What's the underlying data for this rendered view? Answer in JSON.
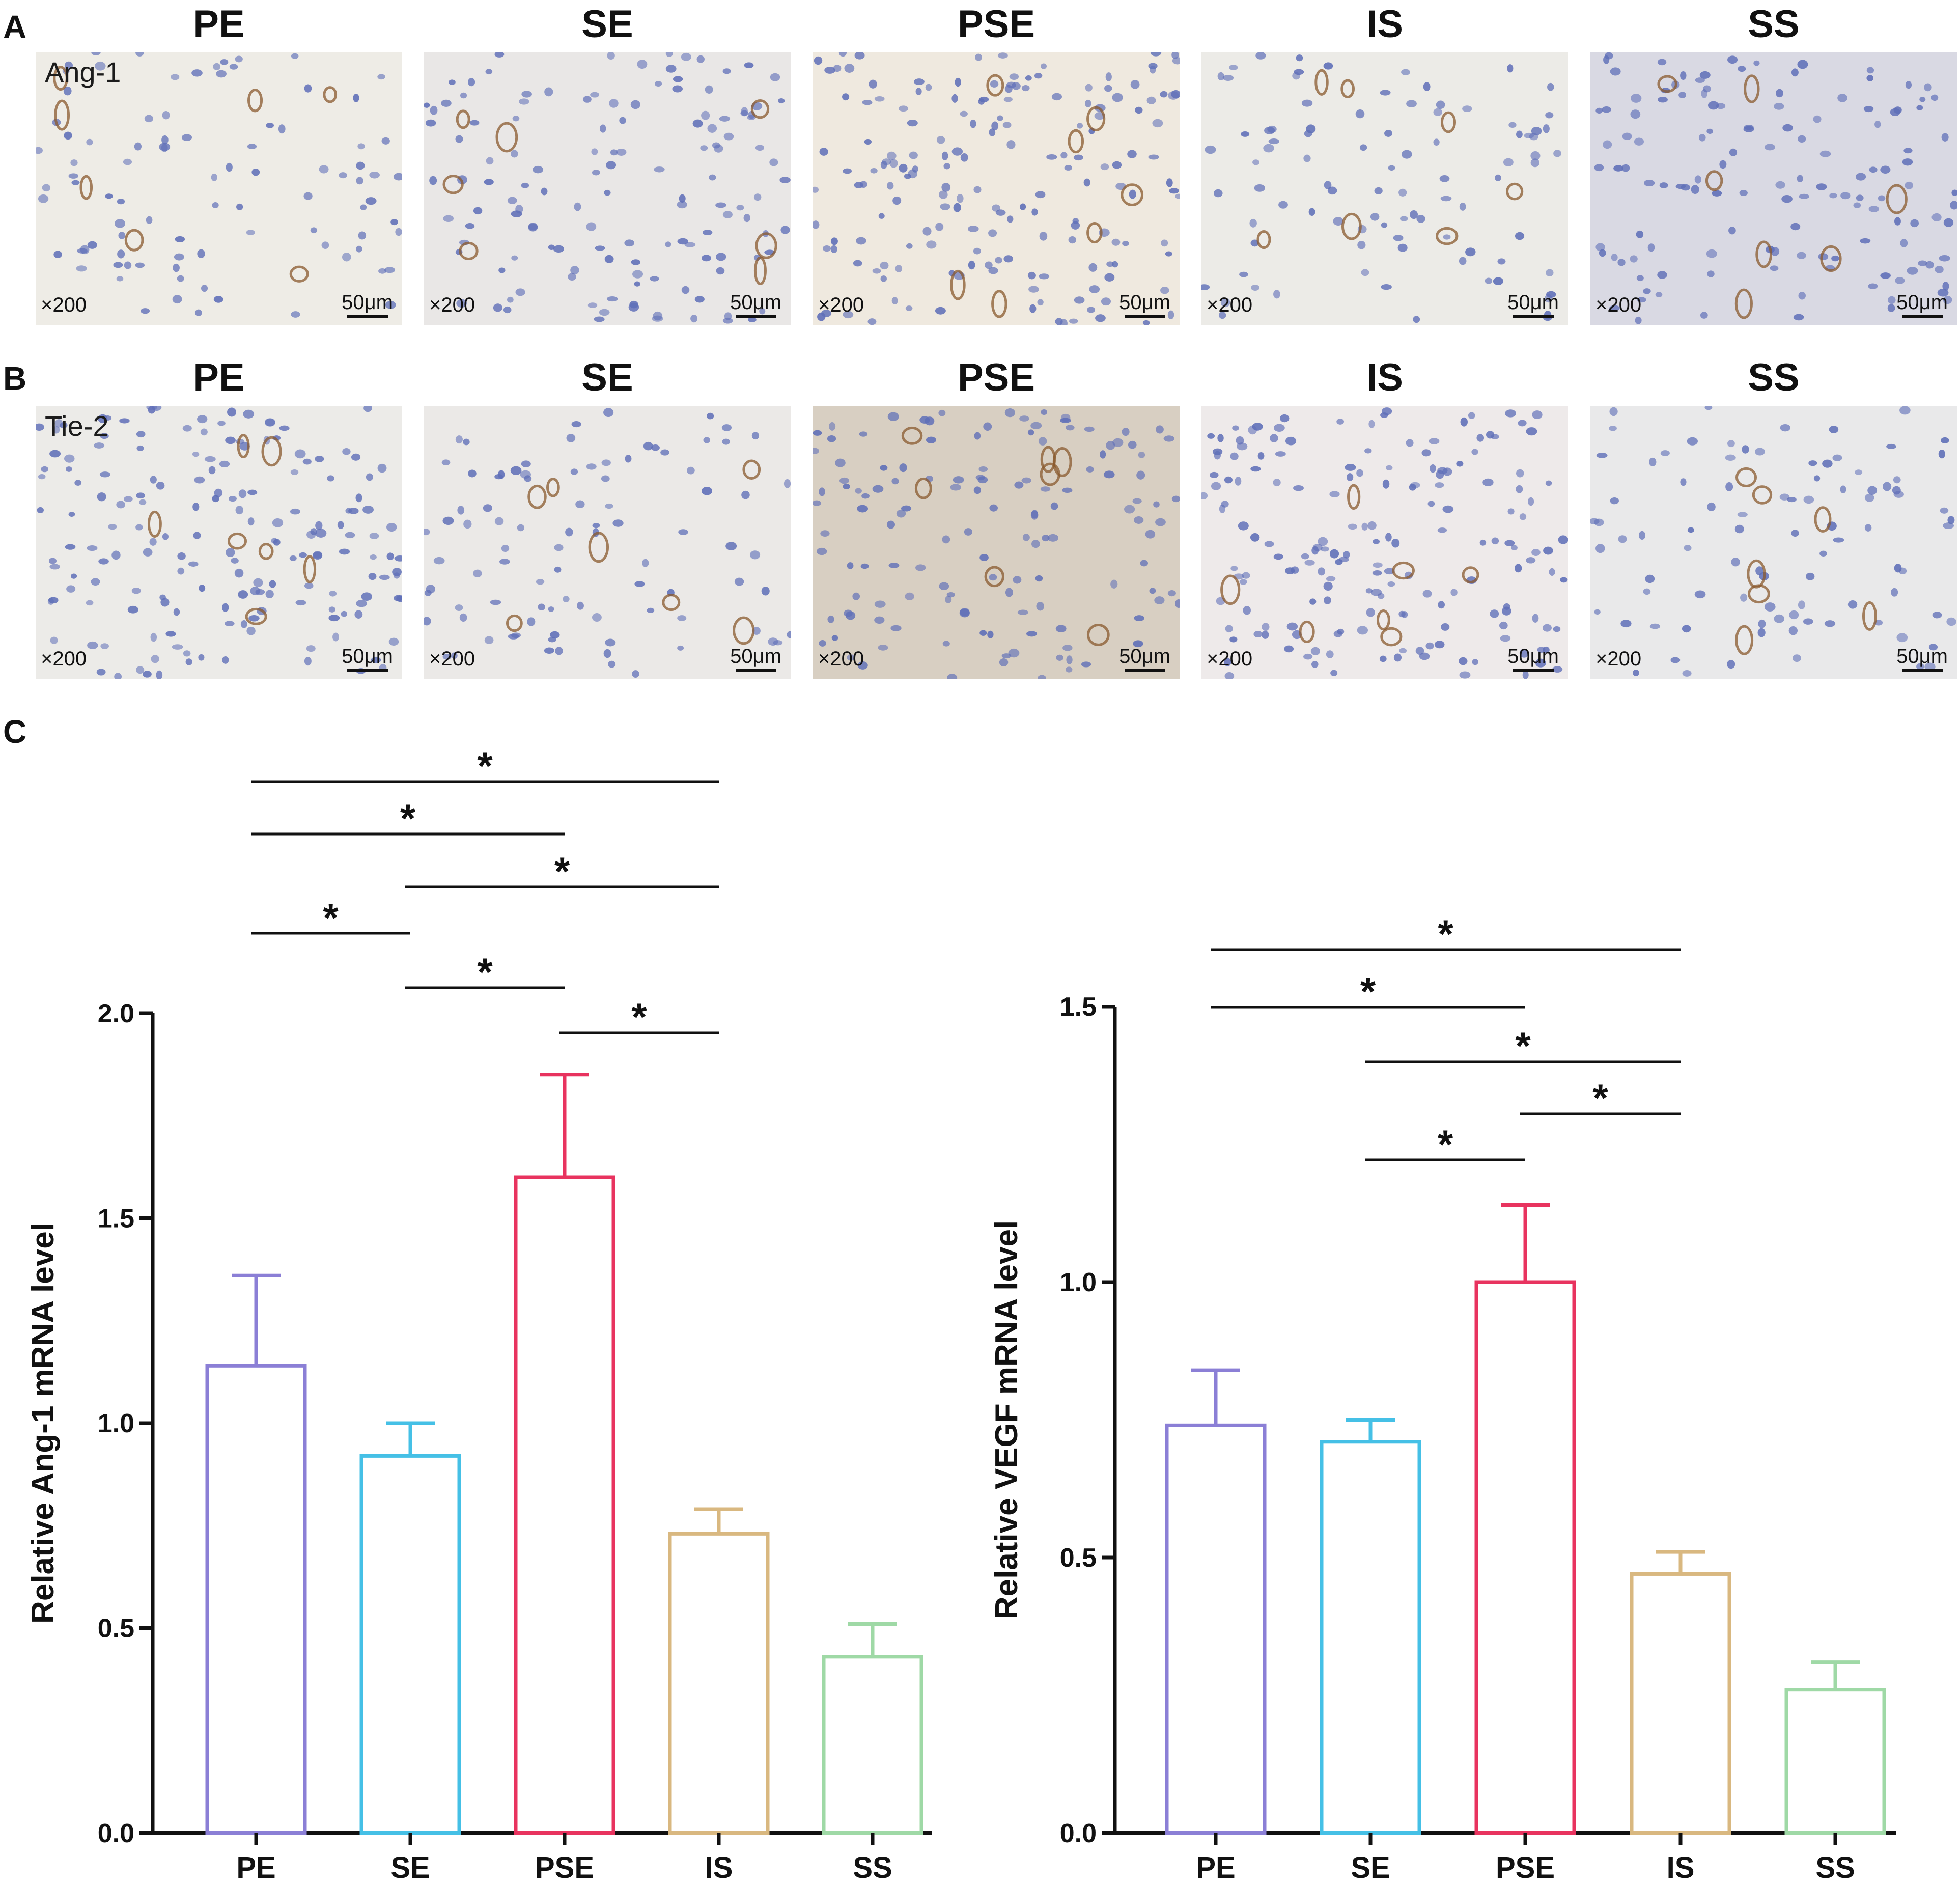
{
  "panels": {
    "A": {
      "letter": "A",
      "stain": "Ang-1",
      "columns": [
        "PE",
        "SE",
        "PSE",
        "IS",
        "SS"
      ],
      "magnification": "×200",
      "scale_bar": "50μm"
    },
    "B": {
      "letter": "B",
      "stain": "Tie-2",
      "columns": [
        "PE",
        "SE",
        "PSE",
        "IS",
        "SS"
      ],
      "magnification": "×200",
      "scale_bar": "50μm"
    },
    "C": {
      "letter": "C"
    }
  },
  "chart_data": [
    {
      "type": "bar",
      "ylabel": "Relative Ang-1 mRNA level",
      "xlabel": "",
      "categories": [
        "PE",
        "SE",
        "PSE",
        "IS",
        "SS"
      ],
      "values": [
        1.14,
        0.92,
        1.6,
        0.73,
        0.43
      ],
      "errors": [
        0.22,
        0.08,
        0.25,
        0.06,
        0.08
      ],
      "colors": [
        "#8b7fd6",
        "#45c0e6",
        "#e8335f",
        "#d9b880",
        "#9fd9a6"
      ],
      "ylim": [
        0,
        2
      ],
      "yticks": [
        "0.0",
        "0.5",
        "1.0",
        "1.5",
        "2.0"
      ],
      "significance": [
        {
          "from": "PE",
          "to": "IS",
          "label": "*"
        },
        {
          "from": "PE",
          "to": "PSE",
          "label": "*"
        },
        {
          "from": "SE",
          "to": "IS",
          "label": "*"
        },
        {
          "from": "PE",
          "to": "SE",
          "label": "*"
        },
        {
          "from": "SE",
          "to": "PSE",
          "label": "*"
        },
        {
          "from": "PSE",
          "to": "IS",
          "label": "*"
        }
      ]
    },
    {
      "type": "bar",
      "ylabel": "Relative VEGF mRNA level",
      "xlabel": "",
      "categories": [
        "PE",
        "SE",
        "PSE",
        "IS",
        "SS"
      ],
      "values": [
        0.74,
        0.71,
        1.0,
        0.47,
        0.26
      ],
      "errors": [
        0.1,
        0.04,
        0.14,
        0.04,
        0.05
      ],
      "colors": [
        "#8b7fd6",
        "#45c0e6",
        "#e8335f",
        "#d9b880",
        "#9fd9a6"
      ],
      "ylim": [
        0,
        1.5
      ],
      "yticks": [
        "0.0",
        "0.5",
        "1.0",
        "1.5"
      ],
      "significance": [
        {
          "from": "PE",
          "to": "IS",
          "label": "*"
        },
        {
          "from": "PE",
          "to": "PSE",
          "label": "*"
        },
        {
          "from": "SE",
          "to": "IS",
          "label": "*"
        },
        {
          "from": "PSE",
          "to": "IS",
          "label": "*"
        },
        {
          "from": "SE",
          "to": "PSE",
          "label": "*"
        }
      ]
    }
  ]
}
